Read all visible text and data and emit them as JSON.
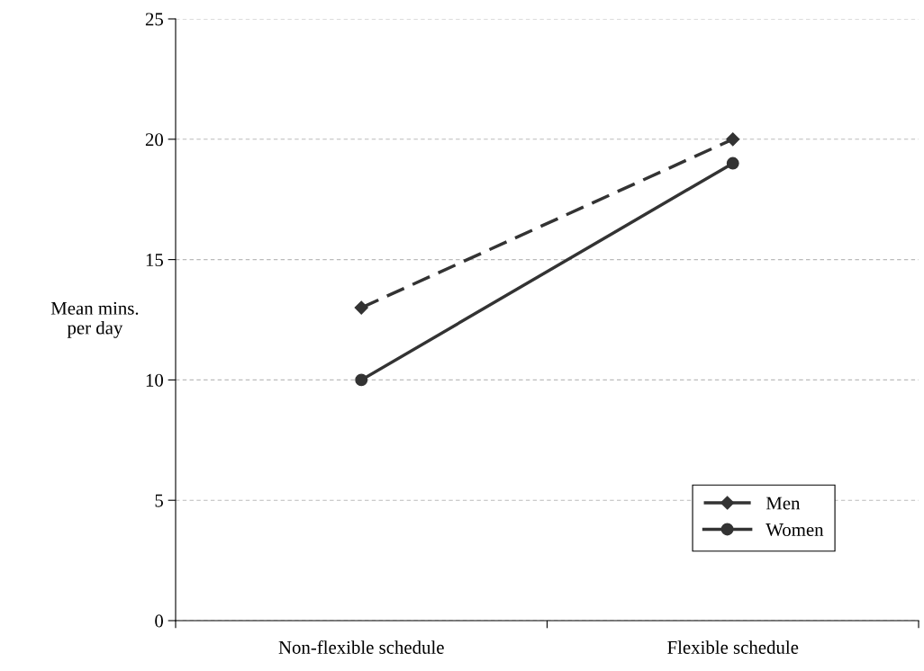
{
  "chart_data": {
    "type": "line",
    "ylabel": "Mean mins.\nper day",
    "categories": [
      "Non-flexible schedule",
      "Flexible schedule"
    ],
    "series": [
      {
        "name": "Men",
        "color": "#333333",
        "values": [
          13,
          20
        ],
        "marker": "diamond",
        "line_style": "dashed"
      },
      {
        "name": "Women",
        "color": "#333333",
        "values": [
          10,
          19
        ],
        "marker": "circle",
        "line_style": "solid"
      }
    ],
    "ylim": [
      0,
      25
    ],
    "yticks": [
      0,
      5,
      10,
      15,
      20,
      25
    ],
    "grid": "y",
    "legend": "bottom right"
  }
}
